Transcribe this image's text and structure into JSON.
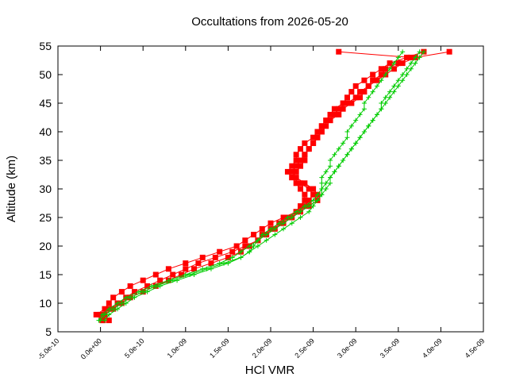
{
  "chart_data": {
    "type": "line",
    "title": "Occultations from 2026-05-20",
    "xlabel": "HCl VMR",
    "ylabel": "Altitude (km)",
    "xlim": [
      -5e-10,
      4.5e-09
    ],
    "ylim": [
      5,
      55
    ],
    "xticks": [
      -5e-10,
      0,
      5e-10,
      1e-09,
      1.5e-09,
      2e-09,
      2.5e-09,
      3e-09,
      3.5e-09,
      4e-09,
      4.5e-09
    ],
    "xtick_labels": [
      "-5.0e-10",
      "0.0e+00",
      "5.0e-10",
      "1.0e-09",
      "1.5e-09",
      "2.0e-09",
      "2.5e-09",
      "3.0e-09",
      "3.5e-09",
      "4.0e-09",
      "4.5e-09"
    ],
    "yticks": [
      5,
      10,
      15,
      20,
      25,
      30,
      35,
      40,
      45,
      50,
      55
    ],
    "ytick_labels": [
      "5",
      "10",
      "15",
      "20",
      "25",
      "30",
      "35",
      "40",
      "45",
      "50",
      "55"
    ],
    "grid": false,
    "legend": "none",
    "altitudes_km": [
      7,
      8,
      9,
      10,
      11,
      12,
      13,
      14,
      15,
      16,
      17,
      18,
      19,
      20,
      21,
      22,
      23,
      24,
      25,
      26,
      27,
      28,
      29,
      30,
      31,
      32,
      33,
      34,
      35,
      36,
      37,
      38,
      39,
      40,
      41,
      42,
      43,
      44,
      45,
      46,
      47,
      48,
      49,
      50,
      51,
      52,
      53,
      54
    ],
    "series": [
      {
        "marker": "square",
        "color": "#ff0000",
        "values": [
          2e-11,
          -5e-11,
          5e-11,
          1e-10,
          1.5e-10,
          2.5e-10,
          3.5e-10,
          5e-10,
          6.5e-10,
          8e-10,
          1e-09,
          1.2e-09,
          1.4e-09,
          1.6e-09,
          1.7e-09,
          1.8e-09,
          1.9e-09,
          2e-09,
          2.15e-09,
          2.3e-09,
          2.4e-09,
          2.45e-09,
          2.5e-09,
          2.45e-09,
          2.35e-09,
          2.25e-09,
          2.2e-09,
          2.25e-09,
          2.3e-09,
          2.3e-09,
          2.35e-09,
          2.4e-09,
          2.5e-09,
          2.55e-09,
          2.6e-09,
          2.65e-09,
          2.7e-09,
          2.75e-09,
          2.85e-09,
          2.9e-09,
          2.95e-09,
          3e-09,
          3.1e-09,
          3.2e-09,
          3.3e-09,
          3.4e-09,
          3.6e-09,
          3.8e-09
        ]
      },
      {
        "marker": "square",
        "color": "#ff0000",
        "values": [
          1e-10,
          0,
          1e-10,
          2e-10,
          3e-10,
          4e-10,
          5.5e-10,
          7e-10,
          8.5e-10,
          1e-09,
          1.15e-09,
          1.35e-09,
          1.55e-09,
          1.7e-09,
          1.85e-09,
          1.95e-09,
          2.05e-09,
          2.15e-09,
          2.25e-09,
          2.35e-09,
          2.45e-09,
          2.55e-09,
          2.55e-09,
          2.5e-09,
          2.4e-09,
          2.3e-09,
          2.25e-09,
          2.3e-09,
          2.35e-09,
          2.4e-09,
          2.45e-09,
          2.5e-09,
          2.55e-09,
          2.6e-09,
          2.65e-09,
          2.7e-09,
          2.75e-09,
          2.8e-09,
          2.9e-09,
          3e-09,
          3.05e-09,
          3.15e-09,
          3.25e-09,
          3.35e-09,
          3.45e-09,
          3.55e-09,
          3.7e-09,
          4.1e-09
        ]
      },
      {
        "marker": "square",
        "color": "#ff0000",
        "values": [
          3e-11,
          5e-11,
          1.5e-10,
          2.5e-10,
          3.5e-10,
          5e-10,
          6.5e-10,
          8e-10,
          9.5e-10,
          1.1e-09,
          1.3e-09,
          1.5e-09,
          1.65e-09,
          1.75e-09,
          1.85e-09,
          1.9e-09,
          2e-09,
          2.1e-09,
          2.2e-09,
          2.3e-09,
          2.35e-09,
          2.4e-09,
          2.4e-09,
          2.35e-09,
          2.3e-09,
          2.25e-09,
          2.3e-09,
          2.35e-09,
          2.4e-09,
          2.4e-09,
          2.45e-09,
          2.5e-09,
          2.55e-09,
          2.6e-09,
          2.6e-09,
          2.7e-09,
          2.8e-09,
          2.85e-09,
          2.95e-09,
          3.05e-09,
          3.1e-09,
          3.15e-09,
          3.2e-09,
          3.3e-09,
          3.35e-09,
          3.5e-09,
          3.65e-09,
          2.8e-09
        ]
      },
      {
        "marker": "plus",
        "color": "#00cc00",
        "values": [
          -2e-11,
          2e-11,
          1e-10,
          2e-10,
          3e-10,
          4.5e-10,
          6e-10,
          8e-10,
          1e-09,
          1.2e-09,
          1.4e-09,
          1.55e-09,
          1.65e-09,
          1.75e-09,
          1.85e-09,
          1.95e-09,
          2.05e-09,
          2.15e-09,
          2.25e-09,
          2.35e-09,
          2.45e-09,
          2.55e-09,
          2.6e-09,
          2.6e-09,
          2.6e-09,
          2.6e-09,
          2.65e-09,
          2.7e-09,
          2.7e-09,
          2.75e-09,
          2.8e-09,
          2.85e-09,
          2.9e-09,
          2.9e-09,
          2.95e-09,
          3e-09,
          3.05e-09,
          3.1e-09,
          3.1e-09,
          3.15e-09,
          3.2e-09,
          3.25e-09,
          3.3e-09,
          3.35e-09,
          3.4e-09,
          3.45e-09,
          3.5e-09,
          3.55e-09
        ]
      },
      {
        "marker": "plus",
        "color": "#00cc00",
        "values": [
          0,
          5e-11,
          1.5e-10,
          2.5e-10,
          3.5e-10,
          5e-10,
          6.5e-10,
          8.5e-10,
          1.05e-09,
          1.25e-09,
          1.45e-09,
          1.65e-09,
          1.75e-09,
          1.8e-09,
          1.85e-09,
          1.9e-09,
          2e-09,
          2.1e-09,
          2.2e-09,
          2.3e-09,
          2.4e-09,
          2.5e-09,
          2.55e-09,
          2.6e-09,
          2.65e-09,
          2.7e-09,
          2.75e-09,
          2.8e-09,
          2.85e-09,
          2.9e-09,
          2.95e-09,
          3e-09,
          3.05e-09,
          3.1e-09,
          3.15e-09,
          3.2e-09,
          3.25e-09,
          3.3e-09,
          3.3e-09,
          3.35e-09,
          3.4e-09,
          3.45e-09,
          3.5e-09,
          3.55e-09,
          3.6e-09,
          3.65e-09,
          3.7e-09,
          3.75e-09
        ]
      },
      {
        "marker": "plus",
        "color": "#00cc00",
        "values": [
          5e-11,
          1e-10,
          2e-10,
          3e-10,
          4e-10,
          5.5e-10,
          7e-10,
          9e-10,
          1.1e-09,
          1.3e-09,
          1.5e-09,
          1.65e-09,
          1.75e-09,
          1.85e-09,
          1.95e-09,
          2.05e-09,
          2.15e-09,
          2.25e-09,
          2.35e-09,
          2.45e-09,
          2.5e-09,
          2.55e-09,
          2.6e-09,
          2.65e-09,
          2.7e-09,
          2.7e-09,
          2.75e-09,
          2.8e-09,
          2.85e-09,
          2.9e-09,
          2.95e-09,
          3e-09,
          3.05e-09,
          3.1e-09,
          3.15e-09,
          3.2e-09,
          3.25e-09,
          3.3e-09,
          3.35e-09,
          3.4e-09,
          3.45e-09,
          3.5e-09,
          3.55e-09,
          3.6e-09,
          3.65e-09,
          3.7e-09,
          3.75e-09,
          3.8e-09
        ]
      }
    ]
  }
}
